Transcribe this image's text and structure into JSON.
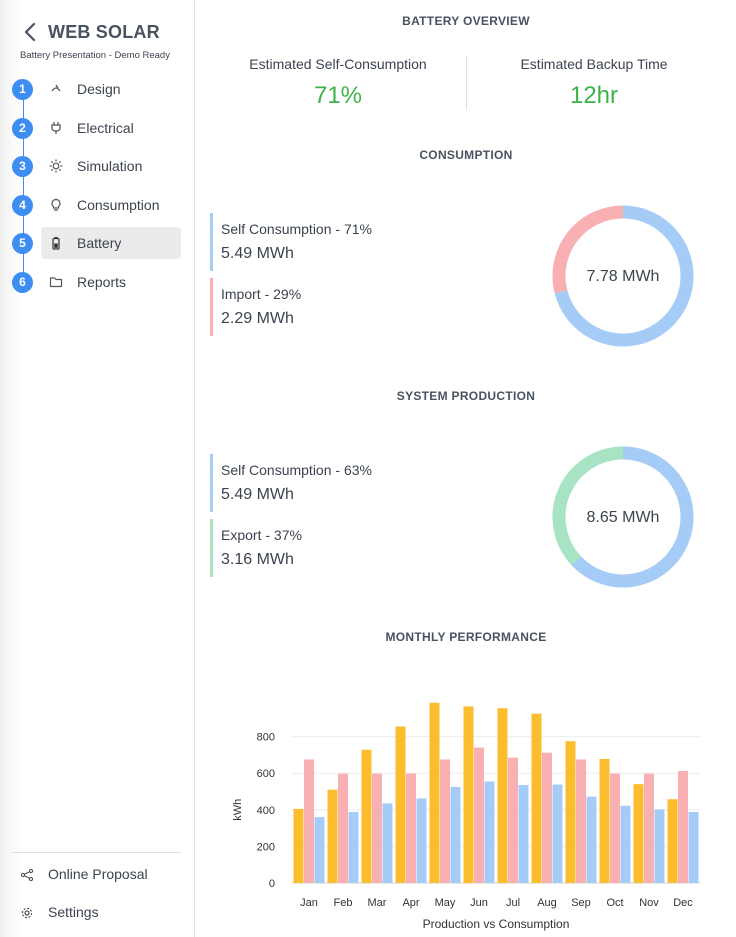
{
  "sidebar": {
    "app_title": "WEB SOLAR",
    "subtitle": "Battery Presentation - Demo Ready",
    "steps": [
      {
        "num": "1",
        "label": "Design",
        "icon": "design-icon"
      },
      {
        "num": "2",
        "label": "Electrical",
        "icon": "plug-icon"
      },
      {
        "num": "3",
        "label": "Simulation",
        "icon": "sun-icon"
      },
      {
        "num": "4",
        "label": "Consumption",
        "icon": "bulb-icon"
      },
      {
        "num": "5",
        "label": "Battery",
        "icon": "battery-icon",
        "active": true
      },
      {
        "num": "6",
        "label": "Reports",
        "icon": "folder-icon"
      }
    ],
    "bottom_links": [
      {
        "label": "Online Proposal",
        "icon": "share-icon"
      },
      {
        "label": "Settings",
        "icon": "gear-icon"
      }
    ]
  },
  "overview": {
    "title": "BATTERY OVERVIEW",
    "self_consumption_label": "Estimated Self-Consumption",
    "self_consumption_value": "71%",
    "backup_label": "Estimated Backup Time",
    "backup_value": "12hr"
  },
  "consumption": {
    "title": "CONSUMPTION",
    "total": "7.78 MWh",
    "items": [
      {
        "label": "Self Consumption - 71%",
        "value": "5.49 MWh",
        "color": "#a5cbf7",
        "fraction": 0.71
      },
      {
        "label": "Import - 29%",
        "value": "2.29 MWh",
        "color": "#f8b0b3",
        "fraction": 0.29
      }
    ]
  },
  "production": {
    "title": "SYSTEM PRODUCTION",
    "total": "8.65 MWh",
    "items": [
      {
        "label": "Self Consumption - 63%",
        "value": "5.49 MWh",
        "color": "#a5cbf7",
        "fraction": 0.63
      },
      {
        "label": "Export - 37%",
        "value": "3.16 MWh",
        "color": "#a8e3c4",
        "fraction": 0.37
      }
    ]
  },
  "monthly": {
    "title": "MONTHLY PERFORMANCE"
  },
  "chart_data": {
    "type": "bar",
    "categories": [
      "Jan",
      "Feb",
      "Mar",
      "Apr",
      "May",
      "Jun",
      "Jul",
      "Aug",
      "Sep",
      "Oct",
      "Nov",
      "Dec"
    ],
    "series": [
      {
        "color": "#fbbd2e",
        "values": [
          405,
          510,
          728,
          855,
          985,
          965,
          955,
          925,
          775,
          678,
          540,
          458
        ]
      },
      {
        "color": "#f8b0b3",
        "values": [
          675,
          598,
          598,
          598,
          675,
          740,
          685,
          712,
          675,
          598,
          598,
          612
        ]
      },
      {
        "color": "#a5cbf7",
        "values": [
          360,
          388,
          435,
          462,
          525,
          555,
          535,
          538,
          472,
          422,
          402,
          388
        ]
      }
    ],
    "xlabel": "Production vs Consumption",
    "ylabel": "kWh",
    "ylim": [
      0,
      1000
    ],
    "yticks": [
      "0",
      "200",
      "400",
      "600",
      "800"
    ],
    "grid": true
  }
}
